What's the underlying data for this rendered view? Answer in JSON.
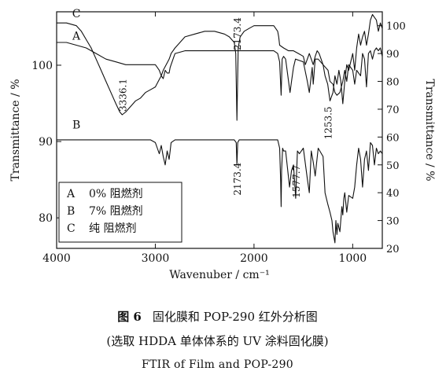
{
  "figure": {
    "number_label": "图 6",
    "title_cn": "固化膜和 POP-290 红外分析图",
    "subtitle_cn": "(选取 HDDA 单体体系的 UV 涂料固化膜)",
    "title_en": "FTIR of Film and POP-290"
  },
  "chart_data": {
    "type": "line",
    "title": "",
    "xlabel": "Wavenuber / cm⁻¹",
    "ylabel_left": "Transmittance / %",
    "ylabel_right": "Transmittance / %",
    "x_reversed": true,
    "xlim": [
      4000,
      700
    ],
    "x_ticks": [
      4000,
      3000,
      2000,
      1000
    ],
    "x_tick_labels": [
      "4000",
      "3000",
      "2000",
      "1000"
    ],
    "ylim_left": [
      76,
      107
    ],
    "y_left_ticks": [
      80,
      90,
      100
    ],
    "y_left_tick_labels": [
      "80",
      "90",
      "100"
    ],
    "ylim_right": [
      20,
      105
    ],
    "y_right_ticks": [
      20,
      30,
      40,
      50,
      60,
      70,
      80,
      90,
      100
    ],
    "y_right_tick_labels": [
      "20",
      "30",
      "40",
      "50",
      "60",
      "70",
      "80",
      "90",
      "100"
    ],
    "grid": false,
    "legend_position": "bottom-left",
    "legend": [
      {
        "key": "A",
        "text": "0% 阻燃剂"
      },
      {
        "key": "B",
        "text": "7% 阻燃剂"
      },
      {
        "key": "C",
        "text": "纯 阻燃剂"
      }
    ],
    "series": [
      {
        "name": "A",
        "axis": "right",
        "x": [
          4000,
          3900,
          3800,
          3700,
          3600,
          3500,
          3400,
          3300,
          3200,
          3100,
          3050,
          3000,
          2980,
          2960,
          2940,
          2920,
          2900,
          2880,
          2860,
          2850,
          2840,
          2800,
          2700,
          2500,
          2300,
          2200,
          2000,
          1900,
          1800,
          1760,
          1740,
          1725,
          1715,
          1700,
          1680,
          1635,
          1620,
          1600,
          1580,
          1500,
          1460,
          1440,
          1410,
          1400,
          1380,
          1350,
          1300,
          1250,
          1230,
          1200,
          1180,
          1160,
          1130,
          1100,
          1080,
          1060,
          1040,
          1000,
          980,
          960,
          920,
          900,
          880,
          860,
          840,
          820,
          800,
          780,
          760,
          740,
          720,
          700
        ],
        "y": [
          94,
          94,
          93,
          92,
          90,
          88,
          87,
          86,
          86,
          86,
          86,
          86,
          85,
          84,
          82,
          81,
          84,
          83,
          83,
          85,
          86,
          90,
          91,
          91,
          91,
          91,
          91,
          91,
          91,
          90,
          87,
          75,
          88,
          89,
          88,
          76,
          80,
          85,
          88,
          87,
          80,
          76,
          85,
          79,
          88,
          88,
          86,
          84,
          80,
          79,
          76,
          75,
          76,
          80,
          84,
          80,
          86,
          84,
          79,
          84,
          82,
          90,
          88,
          78,
          90,
          91,
          88,
          91,
          92,
          91,
          92,
          89
        ]
      },
      {
        "name": "B",
        "axis": "right",
        "x": [
          4000,
          3800,
          3600,
          3400,
          3200,
          3050,
          3000,
          2980,
          2960,
          2940,
          2920,
          2900,
          2880,
          2860,
          2850,
          2840,
          2800,
          2700,
          2500,
          2300,
          2200,
          2180,
          2173.4,
          2165,
          2150,
          2000,
          1900,
          1800,
          1760,
          1740,
          1730,
          1725,
          1720,
          1710,
          1700,
          1680,
          1640,
          1620,
          1600,
          1590,
          1577.7,
          1560,
          1540,
          1500,
          1460,
          1440,
          1420,
          1400,
          1380,
          1350,
          1300,
          1280,
          1253.5,
          1230,
          1210,
          1200,
          1180,
          1170,
          1160,
          1150,
          1130,
          1110,
          1100,
          1090,
          1080,
          1060,
          1040,
          1000,
          980,
          960,
          940,
          920,
          900,
          880,
          860,
          840,
          820,
          800,
          780,
          760,
          740,
          720,
          700
        ],
        "y": [
          59,
          59,
          59,
          59,
          59,
          59,
          58,
          56,
          54,
          57,
          53,
          50,
          55,
          52,
          55,
          58,
          59,
          59,
          59,
          59,
          59,
          58,
          50,
          58,
          59,
          59,
          59,
          59,
          59,
          56,
          44,
          35,
          48,
          56,
          55,
          55,
          42,
          48,
          50,
          45,
          38,
          55,
          54,
          56,
          45,
          40,
          55,
          51,
          46,
          56,
          53,
          40,
          36,
          33,
          30,
          26,
          22,
          30,
          25,
          29,
          26,
          35,
          32,
          38,
          40,
          33,
          39,
          38,
          42,
          50,
          56,
          52,
          42,
          52,
          55,
          48,
          58,
          57,
          50,
          56,
          54,
          55,
          54
        ]
      },
      {
        "name": "C",
        "axis": "right",
        "x": [
          4000,
          3900,
          3800,
          3750,
          3700,
          3650,
          3600,
          3550,
          3500,
          3450,
          3400,
          3360,
          3336.1,
          3300,
          3250,
          3200,
          3150,
          3100,
          3050,
          3000,
          2970,
          2940,
          2920,
          2890,
          2860,
          2850,
          2840,
          2800,
          2750,
          2700,
          2600,
          2500,
          2400,
          2300,
          2250,
          2200,
          2185,
          2173.4,
          2160,
          2140,
          2100,
          2050,
          2000,
          1950,
          1900,
          1850,
          1800,
          1780,
          1760,
          1750,
          1740,
          1700,
          1650,
          1600,
          1550,
          1500,
          1480,
          1460,
          1440,
          1400,
          1380,
          1360,
          1340,
          1300,
          1280,
          1253.5,
          1230,
          1200,
          1180,
          1160,
          1140,
          1120,
          1100,
          1080,
          1060,
          1040,
          1000,
          980,
          960,
          940,
          920,
          900,
          880,
          860,
          840,
          820,
          800,
          780,
          760,
          740,
          720,
          700
        ],
        "y": [
          101,
          101,
          100,
          98,
          95,
          92,
          88,
          84,
          80,
          76,
          72,
          69,
          68,
          69,
          71,
          73,
          74,
          76,
          77,
          78,
          80,
          82,
          84,
          86,
          88,
          89,
          90,
          92,
          94,
          96,
          97,
          98,
          98,
          97,
          96,
          94,
          90,
          66,
          92,
          96,
          98,
          99,
          100,
          100,
          100,
          100,
          100,
          99,
          98,
          96,
          93,
          92,
          91,
          91,
          90,
          89,
          86,
          88,
          90,
          86,
          89,
          91,
          90,
          86,
          82,
          79,
          73,
          76,
          82,
          79,
          84,
          80,
          72,
          80,
          86,
          84,
          90,
          84,
          92,
          97,
          93,
          96,
          98,
          93,
          97,
          102,
          104,
          103,
          102,
          98,
          101,
          99
        ]
      }
    ],
    "curve_labels": [
      {
        "text": "A",
        "x": 3800,
        "y": 95
      },
      {
        "text": "B",
        "x": 3800,
        "y": 63
      },
      {
        "text": "C",
        "x": 3800,
        "y": 103
      }
    ],
    "annotations": [
      {
        "text": "3336.1",
        "x": 3336.1,
        "y": 68,
        "rotate": -90
      },
      {
        "text": "2173.4",
        "x": 2173.4,
        "y": 52,
        "rotate": -90,
        "position": "below"
      },
      {
        "text": "2173.4",
        "x": 2173.4,
        "y": 90,
        "rotate": -90,
        "position": "above"
      },
      {
        "text": "1577.7",
        "x": 1577.7,
        "y": 37,
        "rotate": -90
      },
      {
        "text": "1253.5",
        "x": 1253.5,
        "y": 58,
        "rotate": -90
      }
    ]
  }
}
